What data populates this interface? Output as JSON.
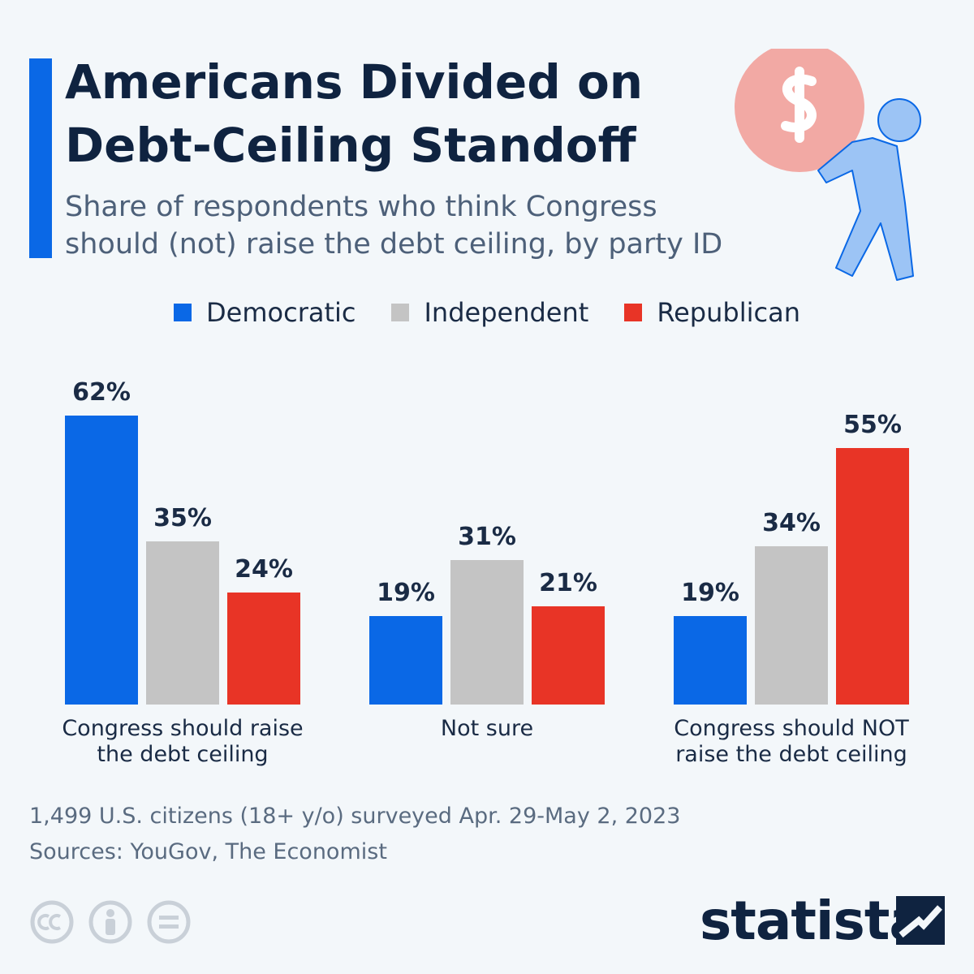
{
  "chart_data": {
    "type": "bar",
    "title": "Americans Divided on Debt-Ceiling Standoff",
    "subtitle": "Share of respondents who think Congress should (not) raise the debt ceiling, by party ID",
    "categories": [
      "Congress should raise the debt ceiling",
      "Not sure",
      "Congress should NOT raise the debt ceiling"
    ],
    "series": [
      {
        "name": "Democratic",
        "color": "#0a68e6",
        "values": [
          62,
          19,
          19
        ],
        "value_labels": [
          "62%",
          "19%",
          "19%"
        ]
      },
      {
        "name": "Independent",
        "color": "#c4c4c4",
        "values": [
          35,
          31,
          34
        ],
        "value_labels": [
          "35%",
          "31%",
          "34%"
        ]
      },
      {
        "name": "Republican",
        "color": "#e83426",
        "values": [
          24,
          21,
          55
        ],
        "value_labels": [
          "24%",
          "21%",
          "55%"
        ]
      }
    ],
    "note": "1,499 U.S. citizens (18+ y/o) surveyed Apr. 29-May 2, 2023",
    "source": "Sources: YouGov, The Economist"
  },
  "branding": {
    "logo": "statista"
  }
}
